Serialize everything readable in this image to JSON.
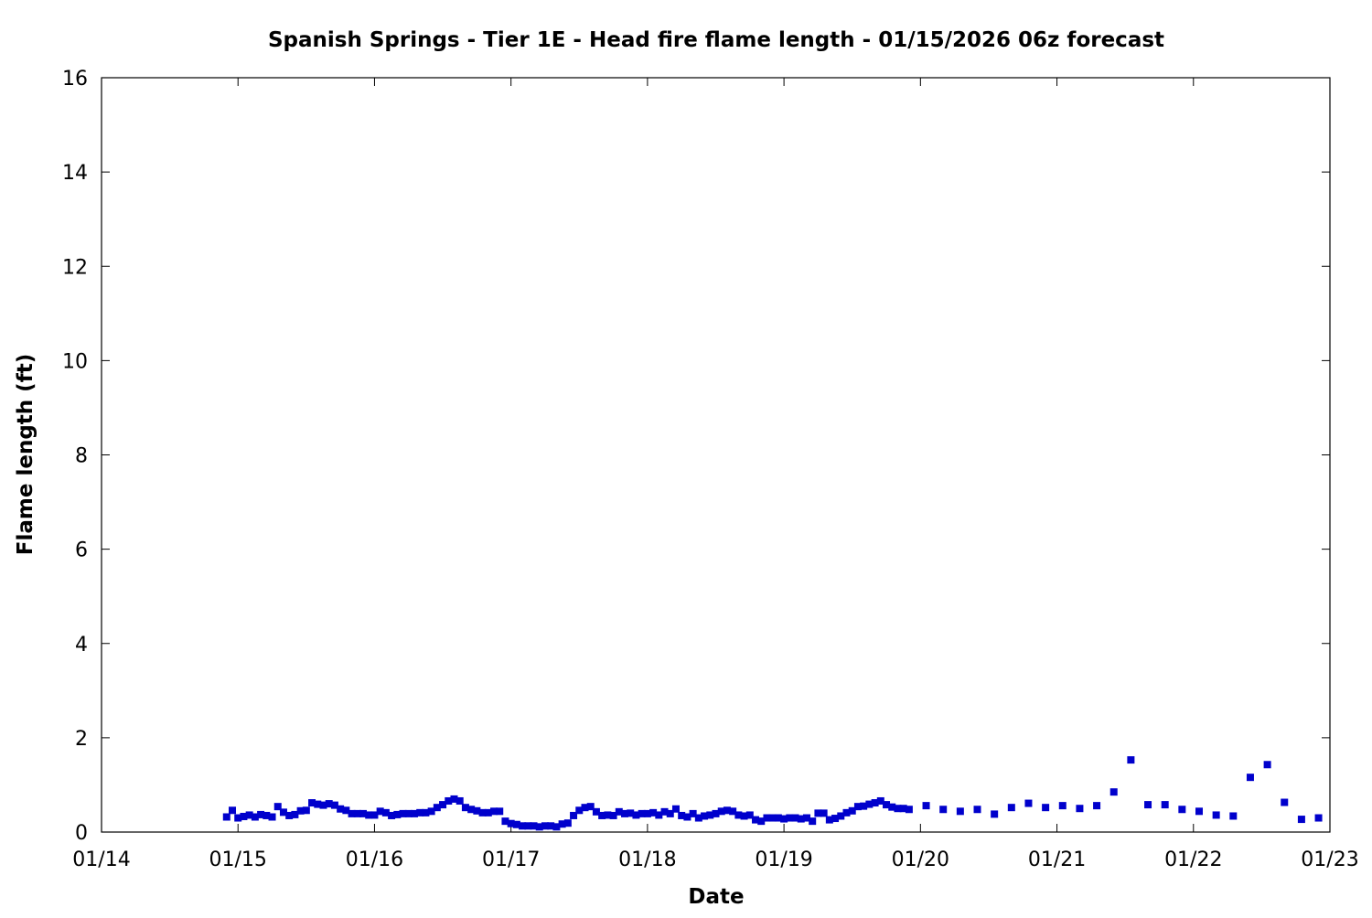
{
  "chart_data": {
    "type": "scatter",
    "title": "Spanish Springs - Tier 1E - Head fire flame length - 01/15/2026 06z forecast",
    "xlabel": "Date",
    "ylabel": "Flame length (ft)",
    "xlim": [
      "01/14 00:00",
      "01/23 00:00"
    ],
    "ylim": [
      0,
      16
    ],
    "x_ticks": [
      "01/14",
      "01/15",
      "01/16",
      "01/17",
      "01/18",
      "01/19",
      "01/20",
      "01/21",
      "01/22",
      "01/23"
    ],
    "y_ticks": [
      "0",
      "2",
      "4",
      "6",
      "8",
      "10",
      "12",
      "14",
      "16"
    ],
    "grid": false,
    "legend": "none",
    "marker": "square",
    "color": "#0000CC",
    "x": [
      "01/14 22:00",
      "01/14 23:00",
      "01/15 00:00",
      "01/15 01:00",
      "01/15 02:00",
      "01/15 03:00",
      "01/15 04:00",
      "01/15 05:00",
      "01/15 06:00",
      "01/15 07:00",
      "01/15 08:00",
      "01/15 09:00",
      "01/15 10:00",
      "01/15 11:00",
      "01/15 12:00",
      "01/15 13:00",
      "01/15 14:00",
      "01/15 15:00",
      "01/15 16:00",
      "01/15 17:00",
      "01/15 18:00",
      "01/15 19:00",
      "01/15 20:00",
      "01/15 21:00",
      "01/15 22:00",
      "01/15 23:00",
      "01/16 00:00",
      "01/16 01:00",
      "01/16 02:00",
      "01/16 03:00",
      "01/16 04:00",
      "01/16 05:00",
      "01/16 06:00",
      "01/16 07:00",
      "01/16 08:00",
      "01/16 09:00",
      "01/16 10:00",
      "01/16 11:00",
      "01/16 12:00",
      "01/16 13:00",
      "01/16 14:00",
      "01/16 15:00",
      "01/16 16:00",
      "01/16 17:00",
      "01/16 18:00",
      "01/16 19:00",
      "01/16 20:00",
      "01/16 21:00",
      "01/16 22:00",
      "01/16 23:00",
      "01/17 00:00",
      "01/17 01:00",
      "01/17 02:00",
      "01/17 03:00",
      "01/17 04:00",
      "01/17 05:00",
      "01/17 06:00",
      "01/17 07:00",
      "01/17 08:00",
      "01/17 09:00",
      "01/17 10:00",
      "01/17 11:00",
      "01/17 12:00",
      "01/17 13:00",
      "01/17 14:00",
      "01/17 15:00",
      "01/17 16:00",
      "01/17 17:00",
      "01/17 18:00",
      "01/17 19:00",
      "01/17 20:00",
      "01/17 21:00",
      "01/17 22:00",
      "01/17 23:00",
      "01/18 00:00",
      "01/18 01:00",
      "01/18 02:00",
      "01/18 03:00",
      "01/18 04:00",
      "01/18 05:00",
      "01/18 06:00",
      "01/18 07:00",
      "01/18 08:00",
      "01/18 09:00",
      "01/18 10:00",
      "01/18 11:00",
      "01/18 12:00",
      "01/18 13:00",
      "01/18 14:00",
      "01/18 15:00",
      "01/18 16:00",
      "01/18 17:00",
      "01/18 18:00",
      "01/18 19:00",
      "01/18 20:00",
      "01/18 21:00",
      "01/18 22:00",
      "01/18 23:00",
      "01/19 00:00",
      "01/19 01:00",
      "01/19 02:00",
      "01/19 03:00",
      "01/19 04:00",
      "01/19 05:00",
      "01/19 06:00",
      "01/19 07:00",
      "01/19 08:00",
      "01/19 09:00",
      "01/19 10:00",
      "01/19 11:00",
      "01/19 12:00",
      "01/19 13:00",
      "01/19 14:00",
      "01/19 15:00",
      "01/19 16:00",
      "01/19 17:00",
      "01/19 18:00",
      "01/19 19:00",
      "01/19 20:00",
      "01/19 21:00",
      "01/19 22:00",
      "01/20 01:00",
      "01/20 04:00",
      "01/20 07:00",
      "01/20 10:00",
      "01/20 13:00",
      "01/20 16:00",
      "01/20 19:00",
      "01/20 22:00",
      "01/21 01:00",
      "01/21 04:00",
      "01/21 07:00",
      "01/21 10:00",
      "01/21 13:00",
      "01/21 16:00",
      "01/21 19:00",
      "01/21 22:00",
      "01/22 01:00",
      "01/22 04:00",
      "01/22 07:00",
      "01/22 10:00",
      "01/22 13:00",
      "01/22 16:00",
      "01/22 19:00",
      "01/22 22:00"
    ],
    "y": [
      0.32,
      0.46,
      0.3,
      0.33,
      0.36,
      0.32,
      0.37,
      0.35,
      0.32,
      0.54,
      0.42,
      0.35,
      0.37,
      0.45,
      0.46,
      0.62,
      0.59,
      0.57,
      0.6,
      0.57,
      0.49,
      0.46,
      0.39,
      0.39,
      0.39,
      0.36,
      0.36,
      0.44,
      0.41,
      0.35,
      0.37,
      0.39,
      0.39,
      0.39,
      0.41,
      0.41,
      0.44,
      0.52,
      0.58,
      0.66,
      0.7,
      0.66,
      0.52,
      0.48,
      0.45,
      0.41,
      0.41,
      0.44,
      0.44,
      0.23,
      0.18,
      0.16,
      0.13,
      0.13,
      0.13,
      0.11,
      0.13,
      0.13,
      0.11,
      0.17,
      0.19,
      0.35,
      0.46,
      0.52,
      0.54,
      0.43,
      0.35,
      0.36,
      0.35,
      0.43,
      0.39,
      0.4,
      0.36,
      0.39,
      0.39,
      0.41,
      0.36,
      0.43,
      0.39,
      0.49,
      0.35,
      0.32,
      0.39,
      0.3,
      0.34,
      0.36,
      0.39,
      0.44,
      0.46,
      0.44,
      0.36,
      0.34,
      0.36,
      0.26,
      0.23,
      0.3,
      0.3,
      0.3,
      0.28,
      0.3,
      0.3,
      0.28,
      0.3,
      0.23,
      0.4,
      0.4,
      0.26,
      0.29,
      0.34,
      0.41,
      0.45,
      0.54,
      0.55,
      0.59,
      0.62,
      0.66,
      0.58,
      0.53,
      0.5,
      0.5,
      0.48,
      0.56,
      0.48,
      0.44,
      0.48,
      0.38,
      0.52,
      0.61,
      0.52,
      0.56,
      0.5,
      0.56,
      0.85,
      1.53,
      0.58,
      0.58,
      0.48,
      0.44,
      0.36,
      0.34,
      1.16,
      1.43,
      0.63,
      0.27,
      0.3
    ]
  }
}
